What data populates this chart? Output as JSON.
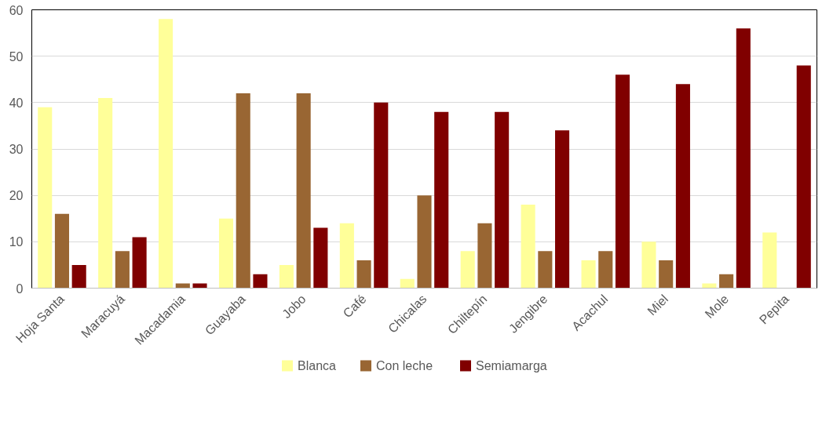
{
  "chart_data": {
    "type": "bar",
    "categories": [
      "Hoja Santa",
      "Maracuyá",
      "Macadamia",
      "Guayaba",
      "Jobo",
      "Café",
      "Chicalas",
      "Chiltepín",
      "Jengibre",
      "Acachul",
      "Miel",
      "Mole",
      "Pepita"
    ],
    "series": [
      {
        "name": "Blanca",
        "color": "#ffff99",
        "values": [
          39,
          41,
          58,
          15,
          5,
          14,
          2,
          8,
          18,
          6,
          10,
          1,
          12
        ]
      },
      {
        "name": "Con leche",
        "color": "#996633",
        "values": [
          16,
          8,
          1,
          42,
          42,
          6,
          20,
          14,
          8,
          8,
          6,
          3,
          0
        ]
      },
      {
        "name": "Semiamarga",
        "color": "#800000",
        "values": [
          5,
          11,
          1,
          3,
          13,
          40,
          38,
          38,
          34,
          46,
          44,
          56,
          48
        ]
      }
    ],
    "ylim": [
      0,
      60
    ],
    "yticks": [
      0,
      10,
      20,
      30,
      40,
      50,
      60
    ],
    "grid": "y",
    "legend": "bottom"
  }
}
